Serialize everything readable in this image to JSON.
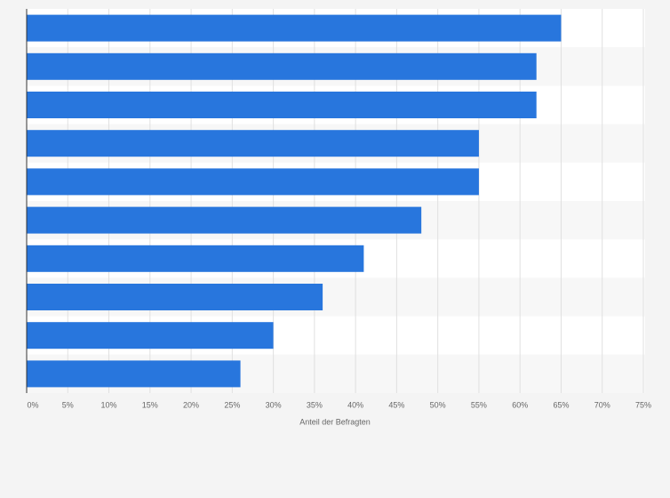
{
  "chart_data": {
    "type": "bar",
    "orientation": "horizontal",
    "categories": [
      null,
      null,
      null,
      null,
      null,
      null,
      null,
      null,
      null,
      null
    ],
    "values": [
      65,
      62,
      62,
      55,
      55,
      48,
      41,
      36,
      30,
      26
    ],
    "color": "#2876dd",
    "xlabel": "Anteil der Befragten",
    "xlim": [
      0,
      75
    ],
    "xticks": [
      {
        "value": 0,
        "label": "0%"
      },
      {
        "value": 5,
        "label": "5%"
      },
      {
        "value": 10,
        "label": "10%"
      },
      {
        "value": 15,
        "label": "15%"
      },
      {
        "value": 20,
        "label": "20%"
      },
      {
        "value": 25,
        "label": "25%"
      },
      {
        "value": 30,
        "label": "30%"
      },
      {
        "value": 35,
        "label": "35%"
      },
      {
        "value": 40,
        "label": "40%"
      },
      {
        "value": 45,
        "label": "45%"
      },
      {
        "value": 50,
        "label": "50%"
      },
      {
        "value": 55,
        "label": "55%"
      },
      {
        "value": 60,
        "label": "60%"
      },
      {
        "value": 65,
        "label": "65%"
      },
      {
        "value": 70,
        "label": "70%"
      },
      {
        "value": 75,
        "label": "75%"
      }
    ],
    "grid": true
  }
}
